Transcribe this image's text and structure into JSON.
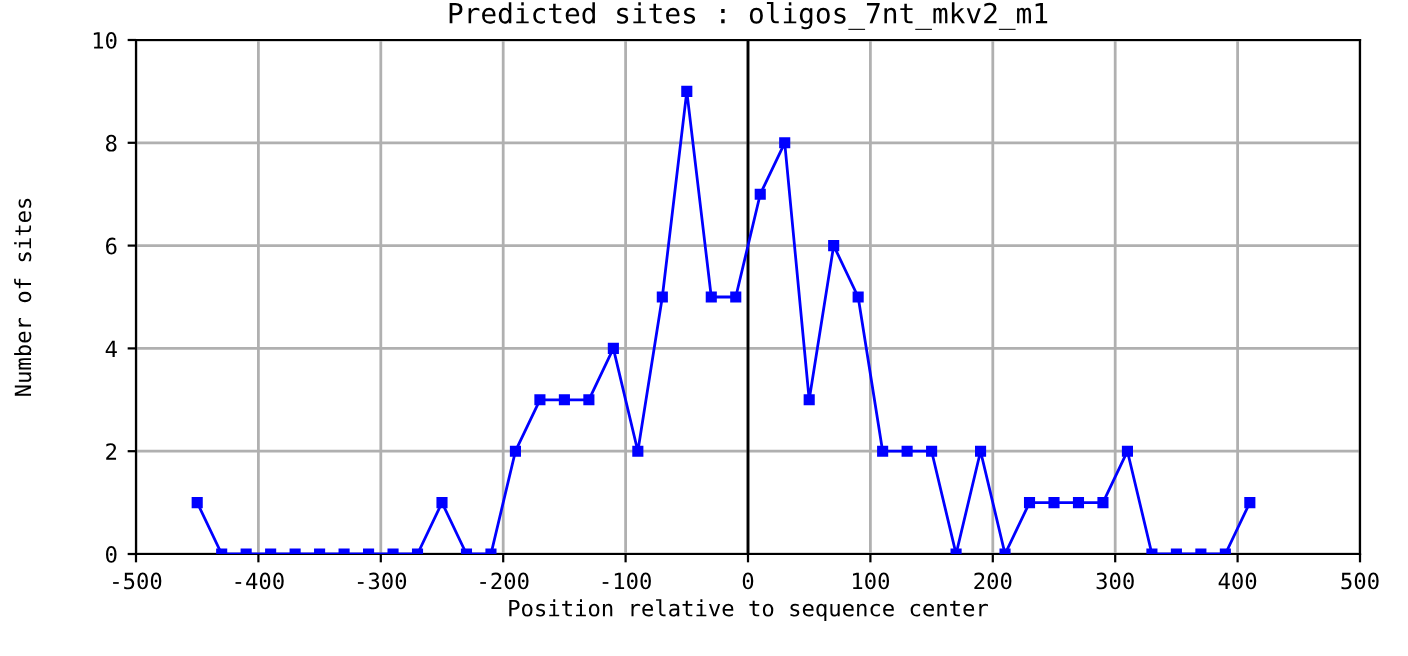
{
  "chart_data": {
    "type": "line",
    "title": "Predicted sites : oligos_7nt_mkv2_m1",
    "xlabel": "Position relative to sequence center",
    "ylabel": "Number of sites",
    "x": [
      -450,
      -430,
      -410,
      -390,
      -370,
      -350,
      -330,
      -310,
      -290,
      -270,
      -250,
      -230,
      -210,
      -190,
      -170,
      -150,
      -130,
      -110,
      -90,
      -70,
      -50,
      -30,
      -10,
      10,
      30,
      50,
      70,
      90,
      110,
      130,
      150,
      170,
      190,
      210,
      230,
      250,
      270,
      290,
      310,
      330,
      350,
      370,
      390,
      410
    ],
    "series": [
      {
        "color": "#0000ff",
        "values": [
          1,
          0,
          0,
          0,
          0,
          0,
          0,
          0,
          0,
          0,
          1,
          0,
          0,
          2,
          3,
          3,
          3,
          4,
          2,
          5,
          9,
          5,
          5,
          7,
          8,
          3,
          6,
          5,
          2,
          2,
          2,
          0,
          2,
          0,
          1,
          1,
          1,
          1,
          2,
          0,
          0,
          0,
          0,
          1
        ]
      }
    ],
    "xlim": [
      -500,
      500
    ],
    "xticks": [
      -500,
      -400,
      -300,
      -200,
      -100,
      0,
      100,
      200,
      300,
      400,
      500
    ],
    "ylim": [
      0,
      10
    ],
    "yticks": [
      0,
      2,
      4,
      6,
      8,
      10
    ],
    "ref_lines": [
      {
        "axis": "x",
        "value": 0,
        "color": "#000000"
      }
    ],
    "grid": true,
    "marker": "square",
    "line_style": "solid"
  }
}
